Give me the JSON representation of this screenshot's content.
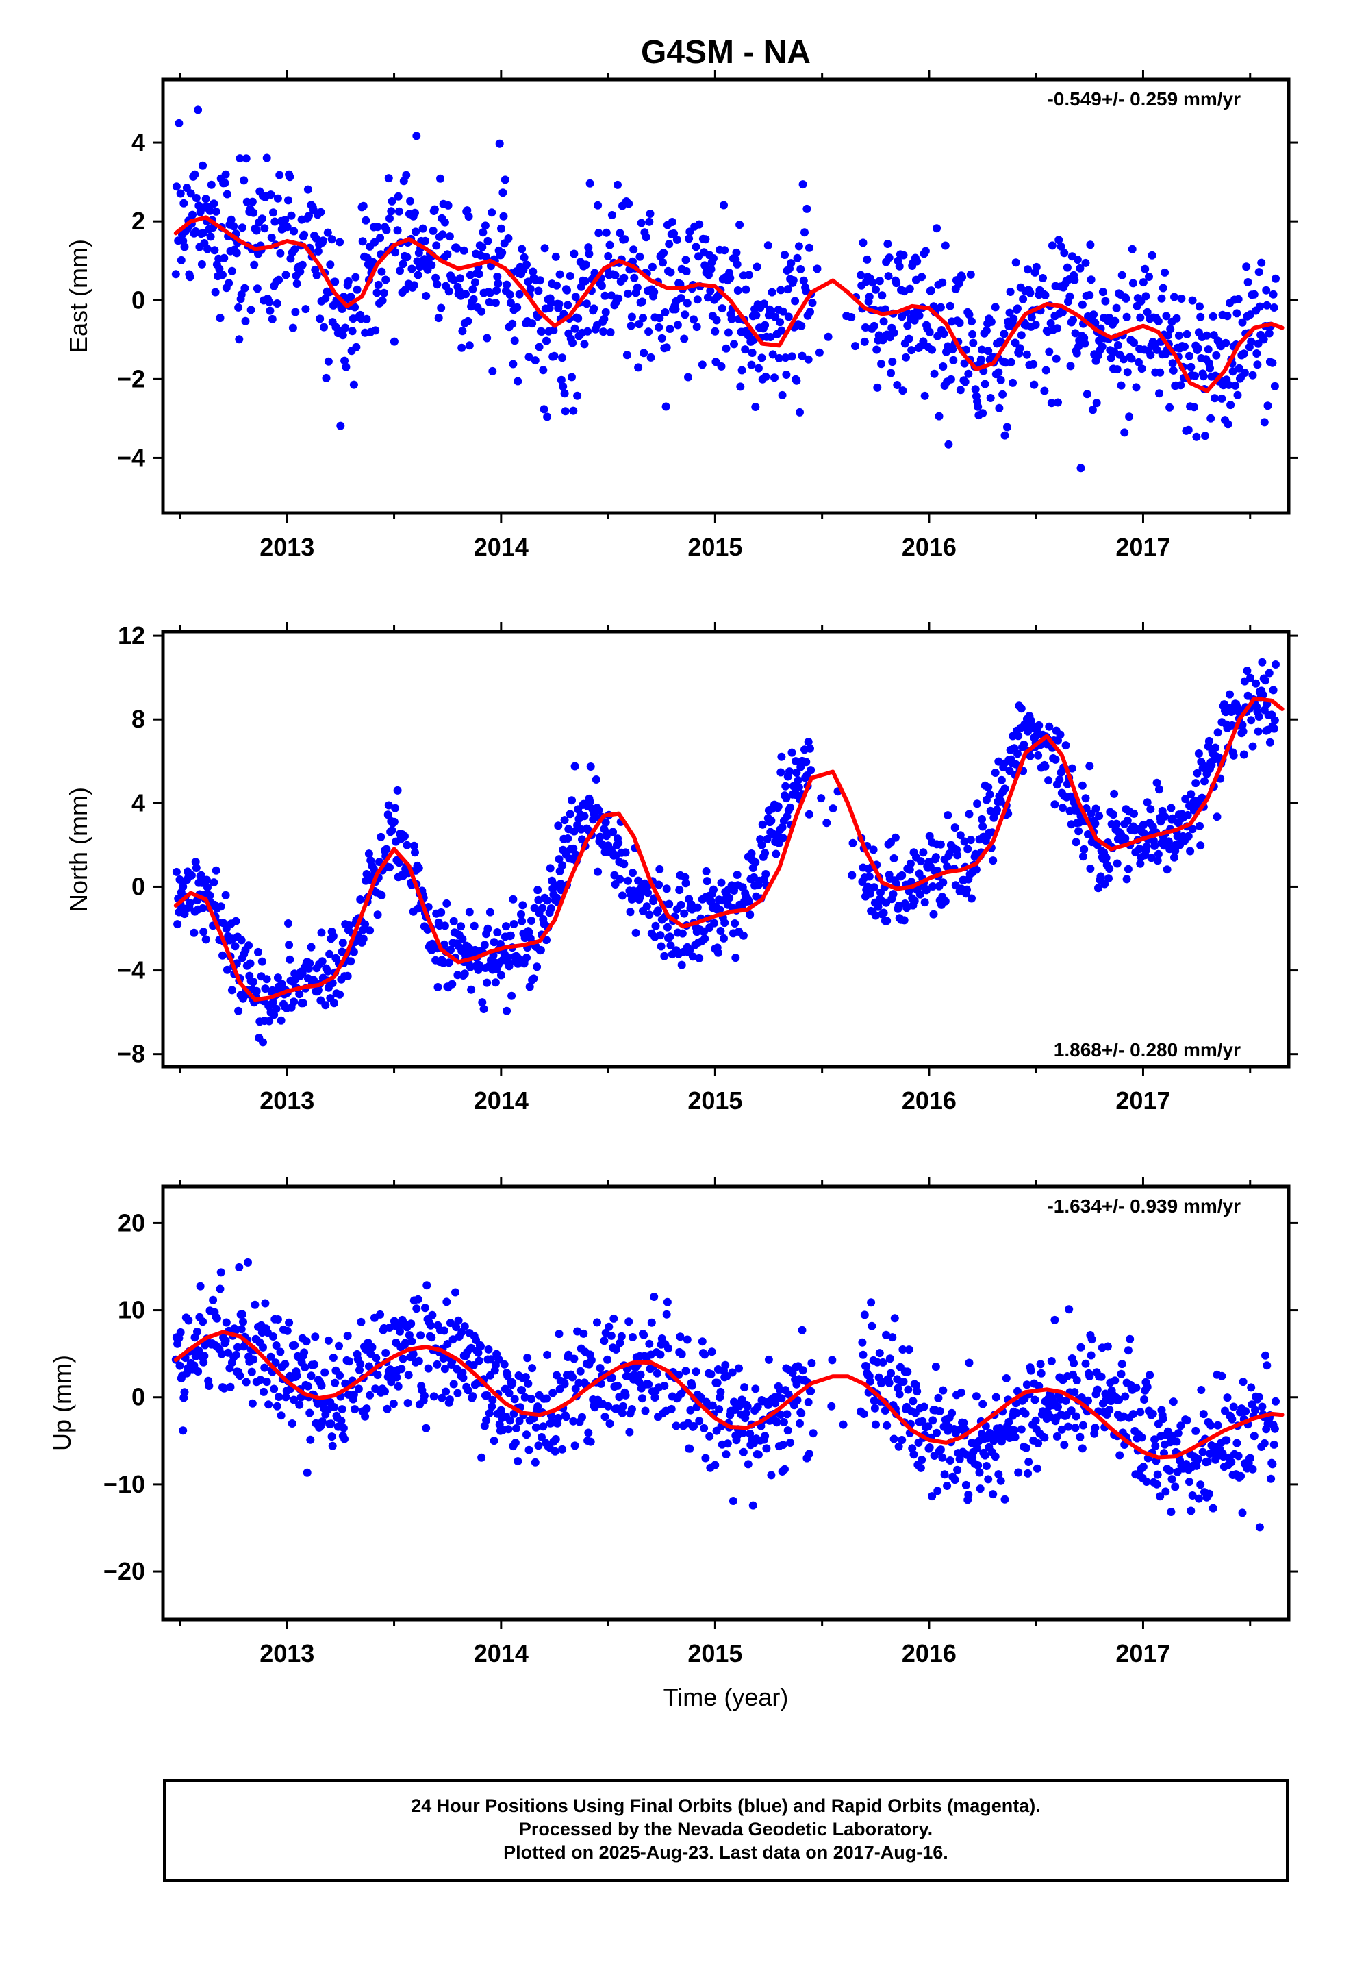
{
  "title": "G4SM - NA",
  "colors": {
    "points": "#0000ff",
    "fit": "#ff0000",
    "axes": "#000000",
    "background": "#ffffff"
  },
  "chart_data": [
    {
      "type": "scatter",
      "ylabel": "East (mm)",
      "xlim": [
        2012.42,
        2017.68
      ],
      "ylim": [
        -5.4,
        5.6
      ],
      "yticks": [
        -4,
        -2,
        0,
        2,
        4
      ],
      "yticklabels": [
        "−4",
        "−2",
        "0",
        "2",
        "4"
      ],
      "xticks": [
        2013,
        2014,
        2015,
        2016,
        2017
      ],
      "xticklabels": [
        "2013",
        "2014",
        "2015",
        "2016",
        "2017"
      ],
      "rate_label": "-0.549+/- 0.259 mm/yr",
      "rate_position": "top-right",
      "series": [
        {
          "kind": "points",
          "x": [
            2012.5,
            2012.6,
            2012.7,
            2012.8,
            2012.9,
            2013.0,
            2013.1,
            2013.2,
            2013.3,
            2013.4,
            2013.5,
            2013.6,
            2013.7,
            2013.8,
            2013.9,
            2014.0,
            2014.1,
            2014.2,
            2014.3,
            2014.4,
            2014.5,
            2014.6,
            2014.7,
            2014.8,
            2014.9,
            2015.0,
            2015.1,
            2015.2,
            2015.3,
            2015.4,
            2015.5,
            2015.6,
            2015.7,
            2015.8,
            2015.9,
            2016.0,
            2016.1,
            2016.2,
            2016.3,
            2016.4,
            2016.5,
            2016.6,
            2016.7,
            2016.8,
            2016.9,
            2017.0,
            2017.1,
            2017.2,
            2017.3,
            2017.4,
            2017.5,
            2017.6
          ],
          "y": [
            2.0,
            1.9,
            1.5,
            1.2,
            1.3,
            1.5,
            1.3,
            0.6,
            -0.1,
            0.7,
            1.5,
            1.3,
            0.9,
            0.7,
            0.9,
            0.9,
            0.2,
            -0.5,
            -0.6,
            0.2,
            0.9,
            0.8,
            0.4,
            0.3,
            0.4,
            0.3,
            -0.4,
            -1.1,
            -1.0,
            0.0,
            0.4,
            0.2,
            -0.2,
            -0.4,
            -0.3,
            -0.2,
            -0.6,
            -1.5,
            -1.7,
            -0.8,
            -0.2,
            -0.1,
            -0.4,
            -0.8,
            -0.9,
            -0.7,
            -0.8,
            -1.7,
            -2.2,
            -1.9,
            -0.9,
            -0.6
          ],
          "sigma": 1.0
        },
        {
          "kind": "line",
          "x": [
            2012.48,
            2012.55,
            2012.62,
            2012.7,
            2012.78,
            2012.85,
            2012.92,
            2013.0,
            2013.08,
            2013.15,
            2013.22,
            2013.28,
            2013.35,
            2013.42,
            2013.5,
            2013.57,
            2013.65,
            2013.72,
            2013.8,
            2013.88,
            2013.95,
            2014.02,
            2014.1,
            2014.18,
            2014.25,
            2014.32,
            2014.4,
            2014.48,
            2014.55,
            2014.62,
            2014.7,
            2014.78,
            2014.85,
            2014.92,
            2015.0,
            2015.07,
            2015.15,
            2015.22,
            2015.3,
            2015.38,
            2015.45,
            2015.55,
            2015.62,
            2015.7,
            2015.78,
            2015.85,
            2015.92,
            2016.0,
            2016.08,
            2016.15,
            2016.22,
            2016.3,
            2016.38,
            2016.45,
            2016.55,
            2016.62,
            2016.7,
            2016.78,
            2016.85,
            2016.92,
            2017.0,
            2017.07,
            2017.15,
            2017.22,
            2017.3,
            2017.38,
            2017.45,
            2017.52,
            2017.6,
            2017.65
          ],
          "y": [
            1.7,
            2.0,
            2.1,
            1.8,
            1.5,
            1.3,
            1.35,
            1.5,
            1.4,
            0.9,
            0.2,
            -0.15,
            0.1,
            0.9,
            1.4,
            1.55,
            1.3,
            1.0,
            0.8,
            0.9,
            1.0,
            0.8,
            0.3,
            -0.3,
            -0.65,
            -0.4,
            0.2,
            0.8,
            1.0,
            0.85,
            0.5,
            0.3,
            0.3,
            0.4,
            0.35,
            0.0,
            -0.6,
            -1.1,
            -1.15,
            -0.4,
            0.2,
            0.5,
            0.2,
            -0.2,
            -0.35,
            -0.3,
            -0.15,
            -0.2,
            -0.6,
            -1.3,
            -1.75,
            -1.6,
            -0.9,
            -0.35,
            -0.1,
            -0.15,
            -0.4,
            -0.75,
            -0.95,
            -0.8,
            -0.65,
            -0.8,
            -1.4,
            -2.1,
            -2.3,
            -1.8,
            -1.1,
            -0.7,
            -0.6,
            -0.7
          ]
        }
      ]
    },
    {
      "type": "scatter",
      "ylabel": "North (mm)",
      "xlim": [
        2012.42,
        2017.68
      ],
      "ylim": [
        -8.6,
        12.2
      ],
      "yticks": [
        -8,
        -4,
        0,
        4,
        8,
        12
      ],
      "yticklabels": [
        "−8",
        "−4",
        "0",
        "4",
        "8",
        "12"
      ],
      "xticks": [
        2013,
        2014,
        2015,
        2016,
        2017
      ],
      "xticklabels": [
        "2013",
        "2014",
        "2015",
        "2016",
        "2017"
      ],
      "rate_label": "1.868+/- 0.280 mm/yr",
      "rate_position": "bottom-right",
      "series": [
        {
          "kind": "points",
          "x": [
            2012.5,
            2012.6,
            2012.7,
            2012.8,
            2012.9,
            2013.0,
            2013.1,
            2013.2,
            2013.3,
            2013.4,
            2013.5,
            2013.6,
            2013.7,
            2013.8,
            2013.9,
            2014.0,
            2014.1,
            2014.2,
            2014.3,
            2014.4,
            2014.5,
            2014.6,
            2014.7,
            2014.8,
            2014.9,
            2015.0,
            2015.1,
            2015.2,
            2015.3,
            2015.4,
            2015.5,
            2015.6,
            2015.7,
            2015.8,
            2015.9,
            2016.0,
            2016.1,
            2016.2,
            2016.3,
            2016.4,
            2016.5,
            2016.6,
            2016.7,
            2016.8,
            2016.9,
            2017.0,
            2017.1,
            2017.2,
            2017.3,
            2017.4,
            2017.5,
            2017.6
          ],
          "y": [
            -0.8,
            -0.3,
            -1.8,
            -4.8,
            -5.4,
            -5.0,
            -4.8,
            -4.4,
            -2.5,
            0.0,
            2.0,
            0.0,
            -3.0,
            -3.6,
            -3.1,
            -3.0,
            -2.8,
            -1.5,
            2.0,
            3.4,
            2.6,
            0.3,
            -1.5,
            -1.9,
            -1.6,
            -1.2,
            -1.0,
            0.5,
            3.0,
            5.2,
            5.0,
            2.4,
            0.3,
            0.0,
            0.3,
            0.7,
            0.8,
            1.5,
            4.0,
            6.5,
            7.3,
            6.0,
            3.5,
            2.0,
            2.2,
            2.5,
            2.7,
            3.0,
            5.0,
            7.8,
            9.0,
            8.6
          ],
          "sigma": 1.0
        },
        {
          "kind": "line",
          "x": [
            2012.48,
            2012.55,
            2012.62,
            2012.7,
            2012.78,
            2012.85,
            2012.92,
            2013.0,
            2013.08,
            2013.15,
            2013.22,
            2013.28,
            2013.35,
            2013.42,
            2013.5,
            2013.57,
            2013.65,
            2013.72,
            2013.8,
            2013.88,
            2013.95,
            2014.02,
            2014.1,
            2014.18,
            2014.25,
            2014.32,
            2014.4,
            2014.48,
            2014.55,
            2014.62,
            2014.7,
            2014.78,
            2014.85,
            2014.92,
            2015.0,
            2015.07,
            2015.15,
            2015.22,
            2015.3,
            2015.38,
            2015.45,
            2015.55,
            2015.62,
            2015.7,
            2015.78,
            2015.85,
            2015.92,
            2016.0,
            2016.08,
            2016.15,
            2016.22,
            2016.3,
            2016.38,
            2016.45,
            2016.55,
            2016.62,
            2016.7,
            2016.78,
            2016.85,
            2016.92,
            2017.0,
            2017.07,
            2017.15,
            2017.22,
            2017.3,
            2017.38,
            2017.45,
            2017.52,
            2017.6,
            2017.65
          ],
          "y": [
            -0.9,
            -0.3,
            -0.6,
            -2.5,
            -4.6,
            -5.4,
            -5.3,
            -5.0,
            -4.8,
            -4.7,
            -4.3,
            -3.2,
            -1.3,
            0.6,
            1.8,
            1.0,
            -1.3,
            -3.0,
            -3.6,
            -3.4,
            -3.1,
            -2.9,
            -2.8,
            -2.6,
            -1.6,
            0.3,
            2.2,
            3.4,
            3.5,
            2.4,
            0.2,
            -1.4,
            -1.9,
            -1.7,
            -1.4,
            -1.2,
            -1.1,
            -0.6,
            0.9,
            3.4,
            5.2,
            5.5,
            4.0,
            1.8,
            0.2,
            -0.1,
            0.0,
            0.4,
            0.7,
            0.8,
            1.1,
            2.2,
            4.4,
            6.4,
            7.2,
            6.3,
            4.0,
            2.3,
            1.8,
            2.0,
            2.3,
            2.5,
            2.7,
            3.0,
            4.2,
            6.2,
            8.0,
            9.0,
            8.9,
            8.5
          ]
        }
      ]
    },
    {
      "type": "scatter",
      "ylabel": "Up (mm)",
      "xlabel": "Time (year)",
      "xlim": [
        2012.42,
        2017.68
      ],
      "ylim": [
        -25.5,
        24.2
      ],
      "yticks": [
        -20,
        -10,
        0,
        10,
        20
      ],
      "yticklabels": [
        "−20",
        "−10",
        "0",
        "10",
        "20"
      ],
      "xticks": [
        2013,
        2014,
        2015,
        2016,
        2017
      ],
      "xticklabels": [
        "2013",
        "2014",
        "2015",
        "2016",
        "2017"
      ],
      "rate_label": "-1.634+/- 0.939 mm/yr",
      "rate_position": "top-right",
      "series": [
        {
          "kind": "points",
          "x": [
            2012.5,
            2012.6,
            2012.7,
            2012.8,
            2012.9,
            2013.0,
            2013.1,
            2013.2,
            2013.3,
            2013.4,
            2013.5,
            2013.6,
            2013.7,
            2013.8,
            2013.9,
            2014.0,
            2014.1,
            2014.2,
            2014.3,
            2014.4,
            2014.5,
            2014.6,
            2014.7,
            2014.8,
            2014.9,
            2015.0,
            2015.1,
            2015.2,
            2015.3,
            2015.4,
            2015.5,
            2015.6,
            2015.7,
            2015.8,
            2015.9,
            2016.0,
            2016.1,
            2016.2,
            2016.3,
            2016.4,
            2016.5,
            2016.6,
            2016.7,
            2016.8,
            2016.9,
            2017.0,
            2017.1,
            2017.2,
            2017.3,
            2017.4,
            2017.5,
            2017.6
          ],
          "y": [
            5.0,
            6.5,
            7.3,
            6.8,
            5.0,
            2.5,
            0.5,
            0.0,
            1.0,
            2.5,
            4.0,
            5.3,
            5.8,
            4.8,
            2.5,
            0.0,
            -1.5,
            -2.0,
            -1.0,
            0.8,
            2.5,
            3.8,
            4.1,
            3.0,
            0.5,
            -2.0,
            -3.3,
            -3.5,
            -2.5,
            -1.0,
            0.5,
            2.0,
            2.4,
            1.5,
            -1.5,
            -3.5,
            -5.0,
            -5.2,
            -4.5,
            -3.2,
            -1.5,
            0.0,
            0.8,
            0.5,
            -1.5,
            -3.5,
            -5.5,
            -6.5,
            -6.5,
            -5.5,
            -4.0,
            -2.5
          ],
          "sigma": 3.6
        },
        {
          "kind": "line",
          "x": [
            2012.48,
            2012.55,
            2012.62,
            2012.7,
            2012.78,
            2012.85,
            2012.92,
            2013.0,
            2013.08,
            2013.15,
            2013.22,
            2013.28,
            2013.35,
            2013.42,
            2013.5,
            2013.57,
            2013.65,
            2013.72,
            2013.8,
            2013.88,
            2013.95,
            2014.02,
            2014.1,
            2014.18,
            2014.25,
            2014.32,
            2014.4,
            2014.48,
            2014.55,
            2014.62,
            2014.7,
            2014.78,
            2014.85,
            2014.92,
            2015.0,
            2015.07,
            2015.15,
            2015.22,
            2015.3,
            2015.38,
            2015.45,
            2015.55,
            2015.62,
            2015.7,
            2015.78,
            2015.85,
            2015.92,
            2016.0,
            2016.08,
            2016.15,
            2016.22,
            2016.3,
            2016.38,
            2016.45,
            2016.55,
            2016.62,
            2016.7,
            2016.78,
            2016.85,
            2016.92,
            2017.0,
            2017.07,
            2017.15,
            2017.22,
            2017.3,
            2017.38,
            2017.45,
            2017.52,
            2017.6,
            2017.65
          ],
          "y": [
            4.3,
            5.6,
            6.8,
            7.5,
            7.0,
            5.6,
            3.8,
            1.8,
            0.4,
            -0.1,
            0.2,
            1.0,
            2.2,
            3.5,
            4.7,
            5.5,
            5.8,
            5.4,
            4.3,
            2.6,
            0.9,
            -0.7,
            -1.8,
            -2.0,
            -1.5,
            -0.5,
            1.0,
            2.4,
            3.4,
            4.0,
            4.0,
            3.0,
            1.3,
            -0.6,
            -2.4,
            -3.4,
            -3.5,
            -2.7,
            -1.3,
            0.3,
            1.6,
            2.4,
            2.4,
            1.5,
            -0.2,
            -2.1,
            -3.8,
            -4.9,
            -5.2,
            -4.6,
            -3.5,
            -2.0,
            -0.5,
            0.6,
            0.9,
            0.6,
            -0.5,
            -2.0,
            -3.6,
            -5.0,
            -6.3,
            -6.9,
            -6.8,
            -6.0,
            -4.9,
            -3.8,
            -3.1,
            -2.4,
            -1.9,
            -2.0
          ]
        }
      ]
    }
  ],
  "caption": {
    "line1": "24 Hour Positions Using Final Orbits (blue) and Rapid Orbits (magenta).",
    "line2": "Processed by the Nevada Geodetic Laboratory.",
    "line3": "Plotted on 2025-Aug-23. Last data on 2017-Aug-16."
  }
}
